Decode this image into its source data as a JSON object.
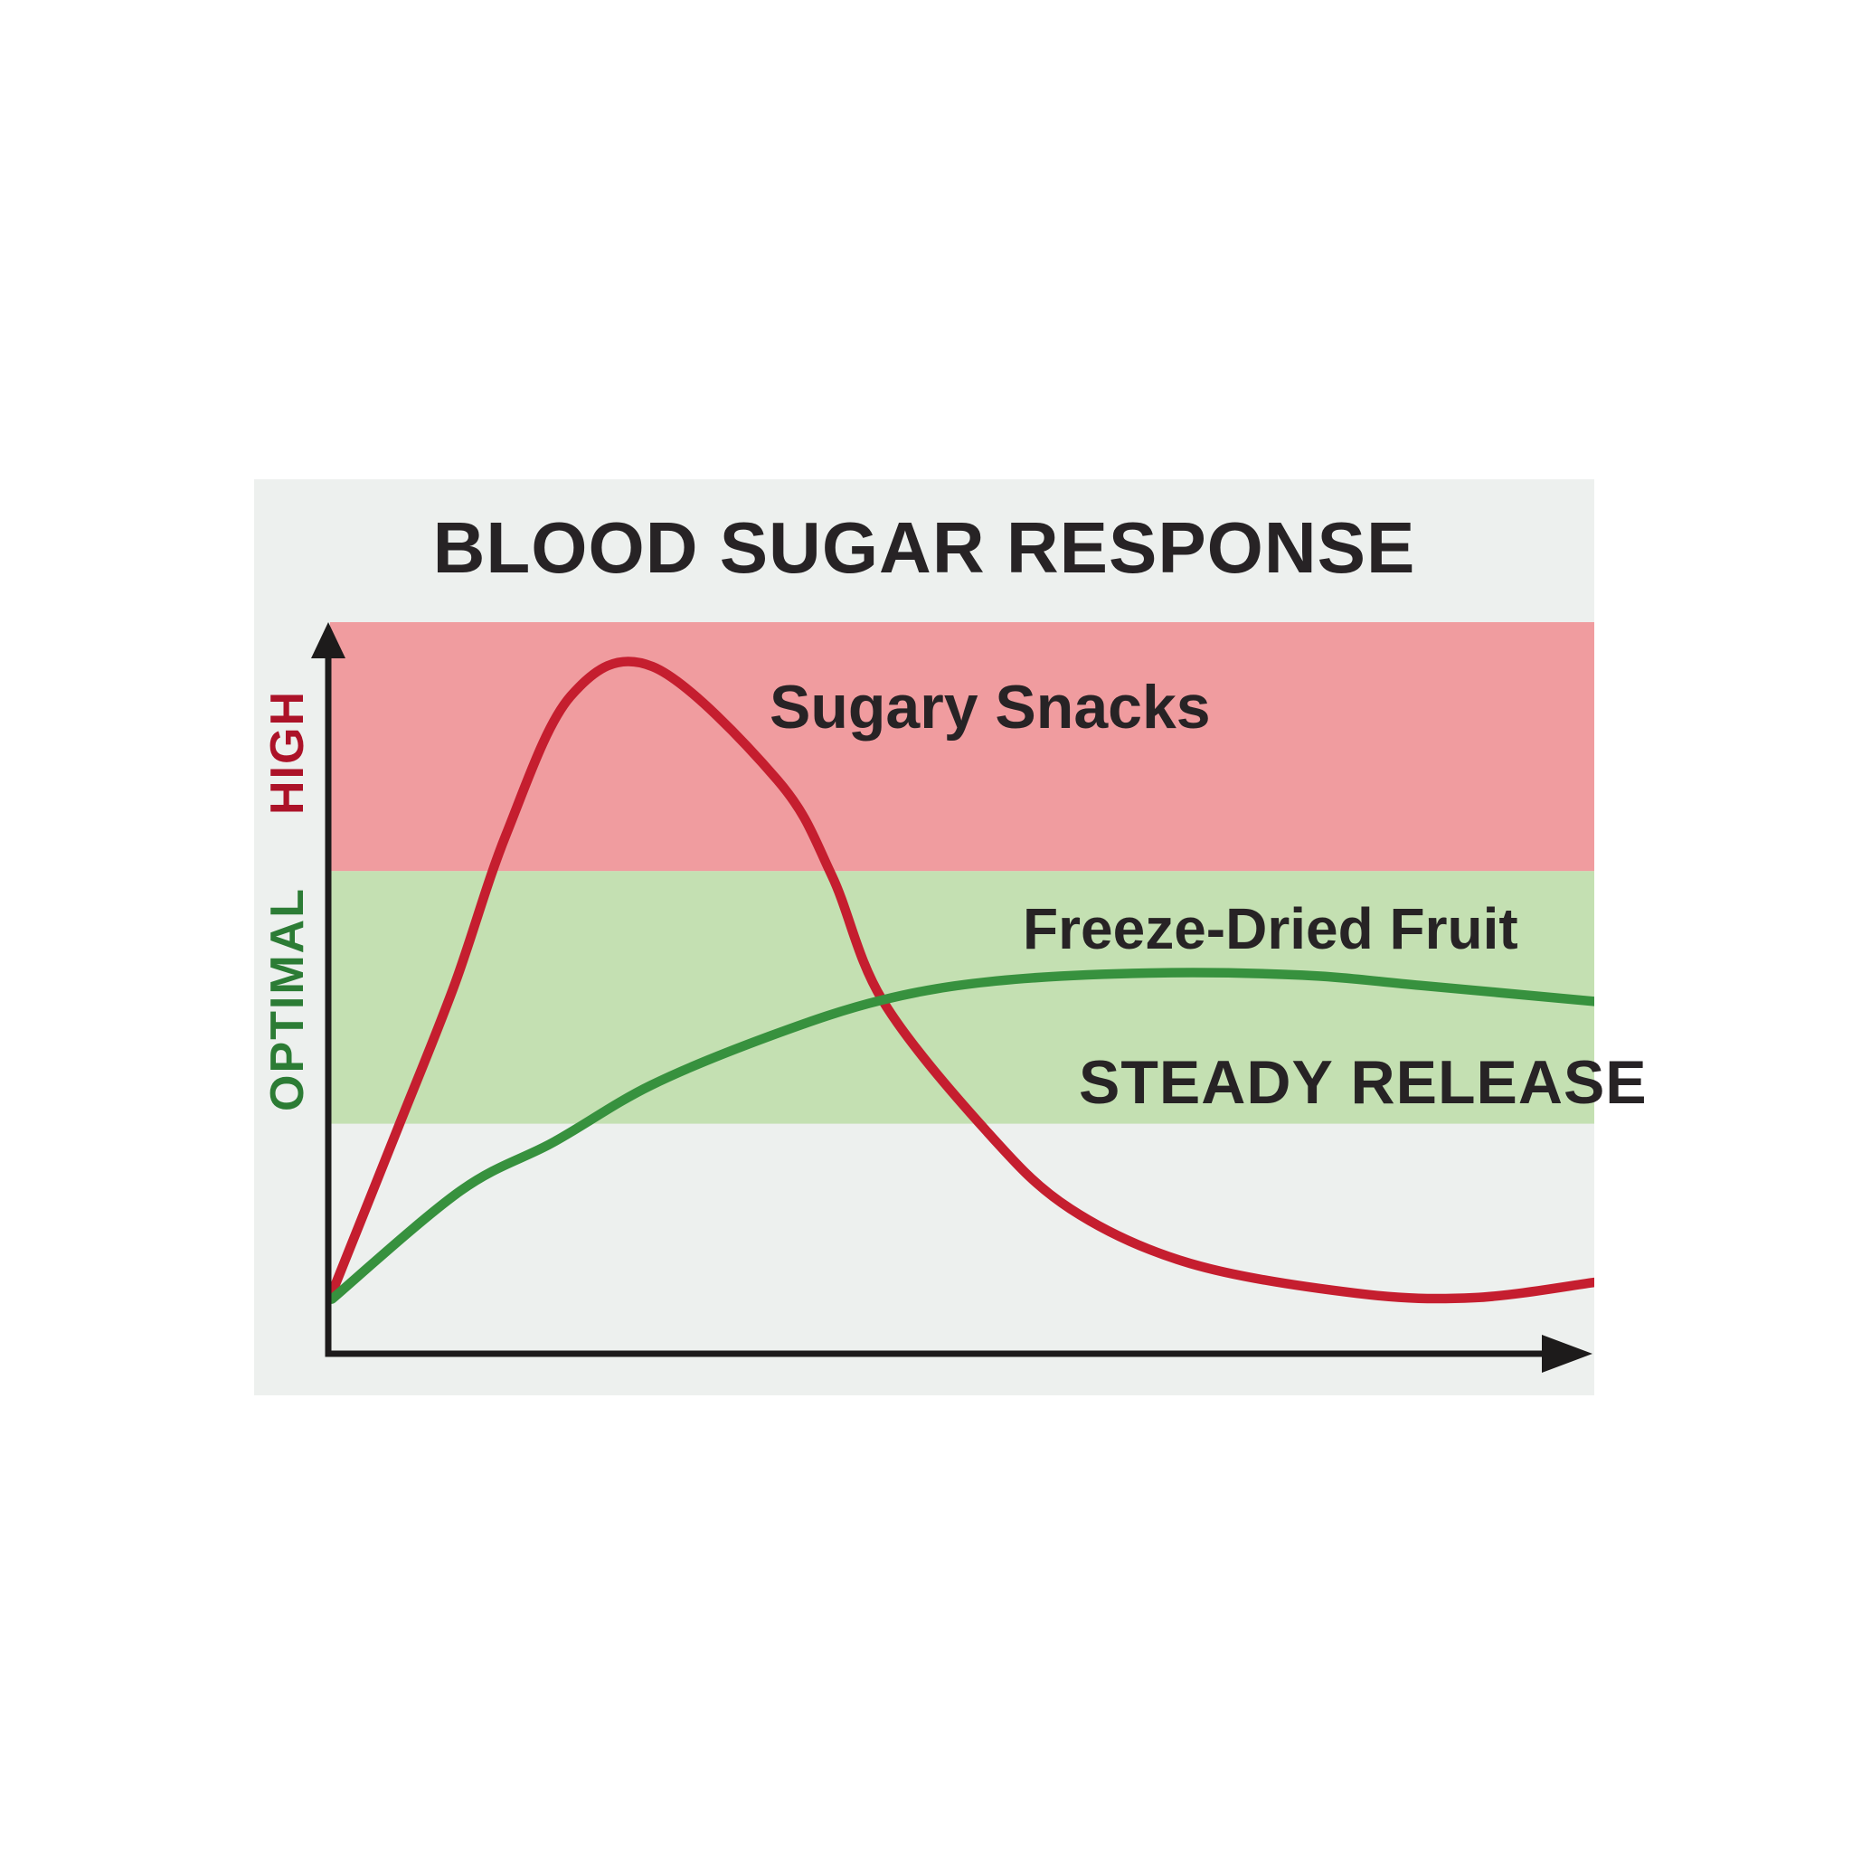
{
  "title": "BLOOD SUGAR RESPONSE",
  "colors": {
    "page_background": "#ffffff",
    "card_background": "#edf0ee",
    "high_band": "#f09c9f",
    "optimal_band": "#c4e0b2",
    "sugary_curve": "#c51e2f",
    "steady_curve": "#37913e",
    "high_text": "#ac1228",
    "optimal_text": "#2c7c35",
    "label_text": "#272325",
    "axis": "#1d1b1b"
  },
  "axis_labels": {
    "high": "HIGH",
    "optimal": "OPTIMAL"
  },
  "annotations": {
    "sugary": "Sugary Snacks",
    "freeze": "Freeze-Dried Fruit",
    "steady": "STEADY RELEASE"
  },
  "chart_data": {
    "type": "line",
    "title": "BLOOD SUGAR RESPONSE",
    "xlabel": "",
    "ylabel": "",
    "xlim": [
      0,
      100
    ],
    "ylim": [
      0,
      105
    ],
    "grid": false,
    "legend_position": "labels-on-plot",
    "bands": [
      {
        "name": "HIGH",
        "range": [
          66.3,
          100.5
        ],
        "color": "#f09c9f"
      },
      {
        "name": "OPTIMAL",
        "range": [
          31.6,
          66.3
        ],
        "color": "#c4e0b2"
      }
    ],
    "series": [
      {
        "name": "Sugary Snacks",
        "color": "#c51e2f",
        "x": [
          0,
          5.3,
          9.7,
          13.8,
          18.9,
          25.4,
          35.3,
          39.6,
          43.6,
          51.8,
          58.5,
          68.0,
          81.2,
          90.5,
          100
        ],
        "y": [
          8.3,
          31.3,
          50.6,
          71.3,
          90.3,
          94.4,
          78.8,
          65.7,
          48.6,
          30.7,
          19.9,
          12.4,
          8.3,
          7.7,
          9.8
        ]
      },
      {
        "name": "Freeze-Dried Fruit (Steady Release)",
        "color": "#37913e",
        "x": [
          0,
          10.2,
          17.6,
          25.3,
          34.8,
          43.6,
          52.6,
          64.8,
          76.9,
          86.2,
          100
        ],
        "y": [
          7.5,
          22.4,
          29.1,
          36.9,
          43.7,
          48.6,
          51.2,
          52.3,
          52.0,
          50.6,
          48.4
        ]
      }
    ]
  }
}
